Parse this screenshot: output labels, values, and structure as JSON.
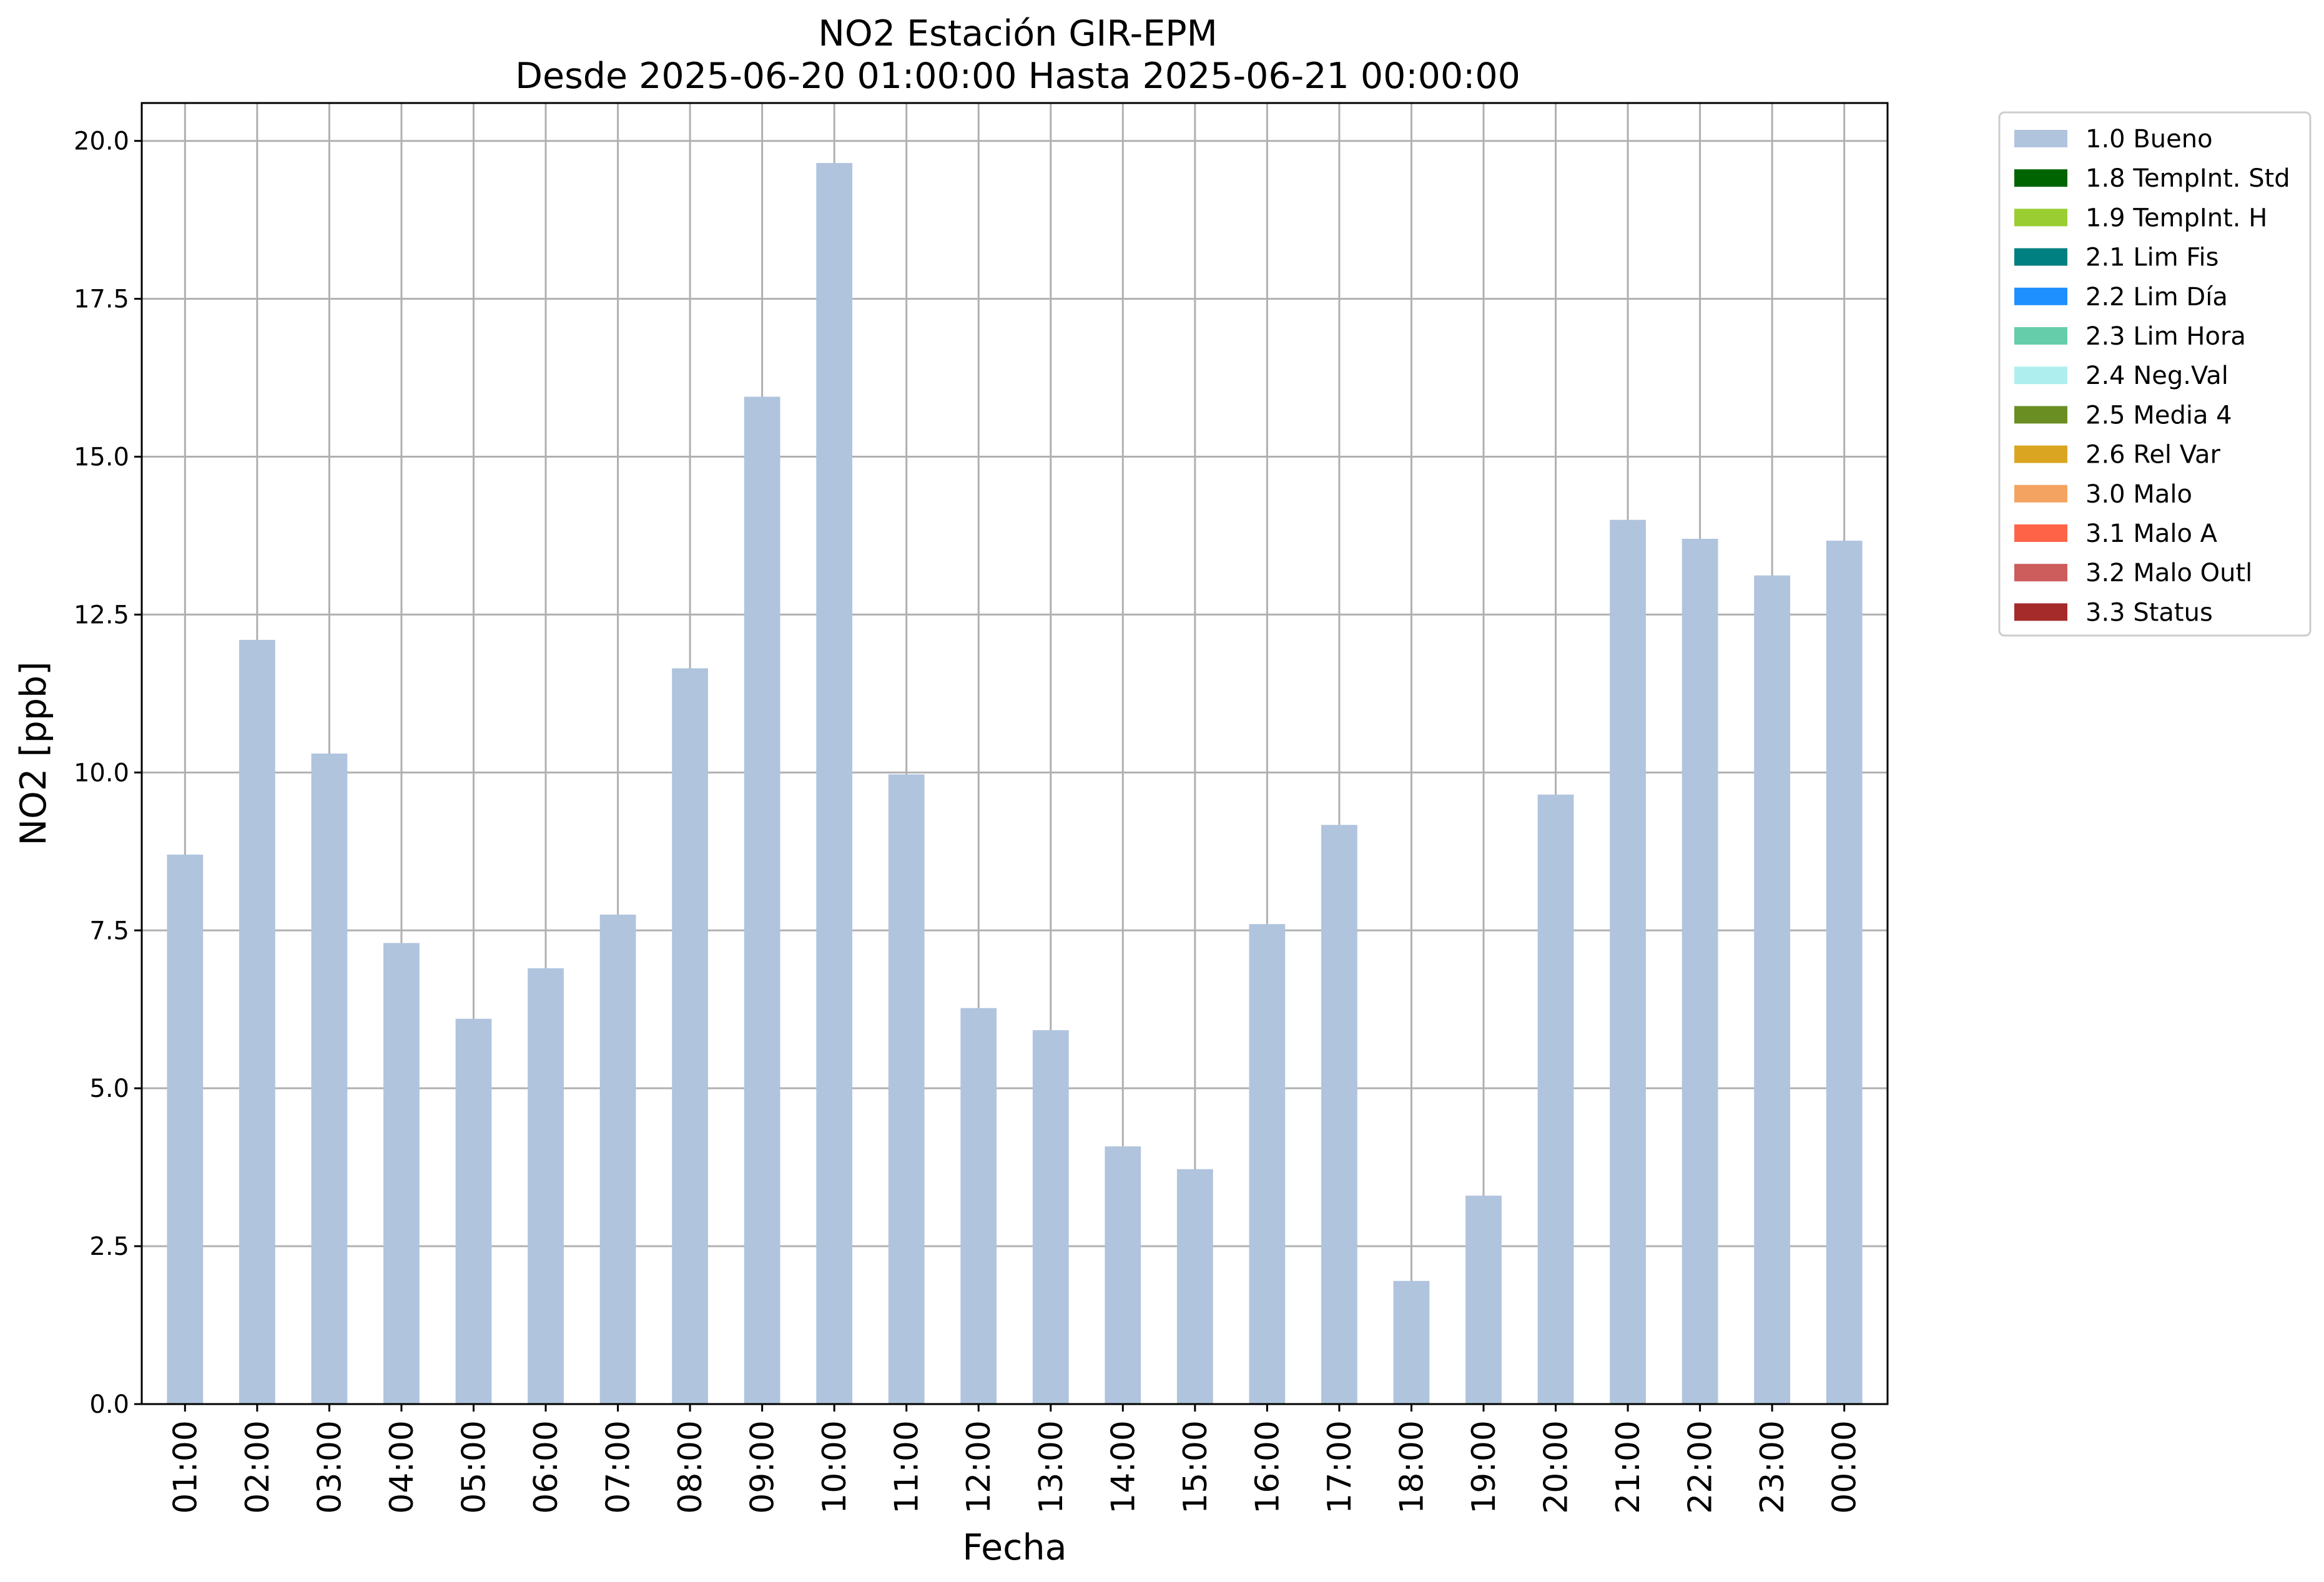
{
  "chart_data": {
    "type": "bar",
    "title": "NO2 Estación GIR-EPM",
    "subtitle": "Desde 2025-06-20 01:00:00 Hasta 2025-06-21 00:00:00",
    "xlabel": "Fecha",
    "ylabel": "NO2 [ppb]",
    "ylim": [
      0,
      20.6
    ],
    "yticks": [
      "0.0",
      "2.5",
      "5.0",
      "7.5",
      "10.0",
      "12.5",
      "15.0",
      "17.5",
      "20.0"
    ],
    "grid": true,
    "legend_position": "outside-top-right",
    "categories": [
      "01:00",
      "02:00",
      "03:00",
      "04:00",
      "05:00",
      "06:00",
      "07:00",
      "08:00",
      "09:00",
      "10:00",
      "11:00",
      "12:00",
      "13:00",
      "14:00",
      "15:00",
      "16:00",
      "17:00",
      "18:00",
      "19:00",
      "20:00",
      "21:00",
      "22:00",
      "23:00",
      "00:00"
    ],
    "series": [
      {
        "name": "1.0 Bueno",
        "color": "#b0c4de",
        "values": [
          8.7,
          12.1,
          10.3,
          7.3,
          6.1,
          6.9,
          7.75,
          11.65,
          15.95,
          19.65,
          9.97,
          6.27,
          5.92,
          4.08,
          3.72,
          7.6,
          9.17,
          1.95,
          3.3,
          9.65,
          14.0,
          13.7,
          13.12,
          13.67
        ]
      }
    ],
    "legend": [
      {
        "label": "1.0 Bueno",
        "color": "#b0c4de"
      },
      {
        "label": "1.8 TempInt. Std",
        "color": "#006400"
      },
      {
        "label": "1.9 TempInt. H",
        "color": "#9acd32"
      },
      {
        "label": "2.1 Lim Fis",
        "color": "#008080"
      },
      {
        "label": "2.2 Lim Día",
        "color": "#1e90ff"
      },
      {
        "label": "2.3 Lim Hora",
        "color": "#66cdaa"
      },
      {
        "label": "2.4 Neg.Val",
        "color": "#afeeee"
      },
      {
        "label": "2.5 Media 4",
        "color": "#6b8e23"
      },
      {
        "label": "2.6 Rel Var",
        "color": "#daa520"
      },
      {
        "label": "3.0 Malo",
        "color": "#f4a460"
      },
      {
        "label": "3.1 Malo A",
        "color": "#ff6347"
      },
      {
        "label": "3.2 Malo Outl",
        "color": "#cd5c5c"
      },
      {
        "label": "3.3 Status",
        "color": "#a52a2a"
      }
    ]
  }
}
